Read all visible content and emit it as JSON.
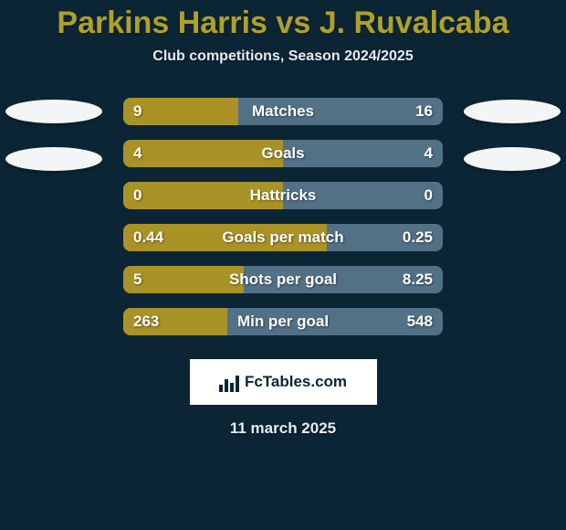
{
  "colors": {
    "background": "#0b2534",
    "title": "#b0a028",
    "text_light": "#e6edf2",
    "bar_left": "#a99226",
    "bar_right": "#527086",
    "bar_label": "#ffffff",
    "value_text": "#ffffff",
    "ellipse_fill": "#f3f5f6",
    "brand_bg": "#ffffff",
    "brand_text": "#0b2534"
  },
  "typography": {
    "title_fontsize": 34,
    "subtitle_fontsize": 16,
    "bar_label_fontsize": 17,
    "value_fontsize": 17,
    "brand_fontsize": 17,
    "date_fontsize": 17
  },
  "layout": {
    "bar_track_width": 350,
    "bar_track_height": 30,
    "bar_radius": 8,
    "ellipse_w": 106,
    "ellipse_h": 26,
    "brand_box_w": 205,
    "brand_box_h": 50
  },
  "title_left": "Parkins Harris",
  "title_vs": " vs ",
  "title_right": "J. Ruvalcaba",
  "subtitle": "Club competitions, Season 2024/2025",
  "stats": [
    {
      "label": "Matches",
      "left_val": "9",
      "right_val": "16",
      "left_num": 9,
      "right_num": 16
    },
    {
      "label": "Goals",
      "left_val": "4",
      "right_val": "4",
      "left_num": 4,
      "right_num": 4
    },
    {
      "label": "Hattricks",
      "left_val": "0",
      "right_val": "0",
      "left_num": 0,
      "right_num": 0
    },
    {
      "label": "Goals per match",
      "left_val": "0.44",
      "right_val": "0.25",
      "left_num": 0.44,
      "right_num": 0.25
    },
    {
      "label": "Shots per goal",
      "left_val": "5",
      "right_val": "8.25",
      "left_num": 5,
      "right_num": 8.25
    },
    {
      "label": "Min per goal",
      "left_val": "263",
      "right_val": "548",
      "left_num": 263,
      "right_num": 548
    }
  ],
  "ellipses": [
    {
      "side": "left",
      "row": 0
    },
    {
      "side": "left",
      "row": 1
    },
    {
      "side": "right",
      "row": 0
    },
    {
      "side": "right",
      "row": 1
    }
  ],
  "brand": "FcTables.com",
  "date": "11 march 2025"
}
